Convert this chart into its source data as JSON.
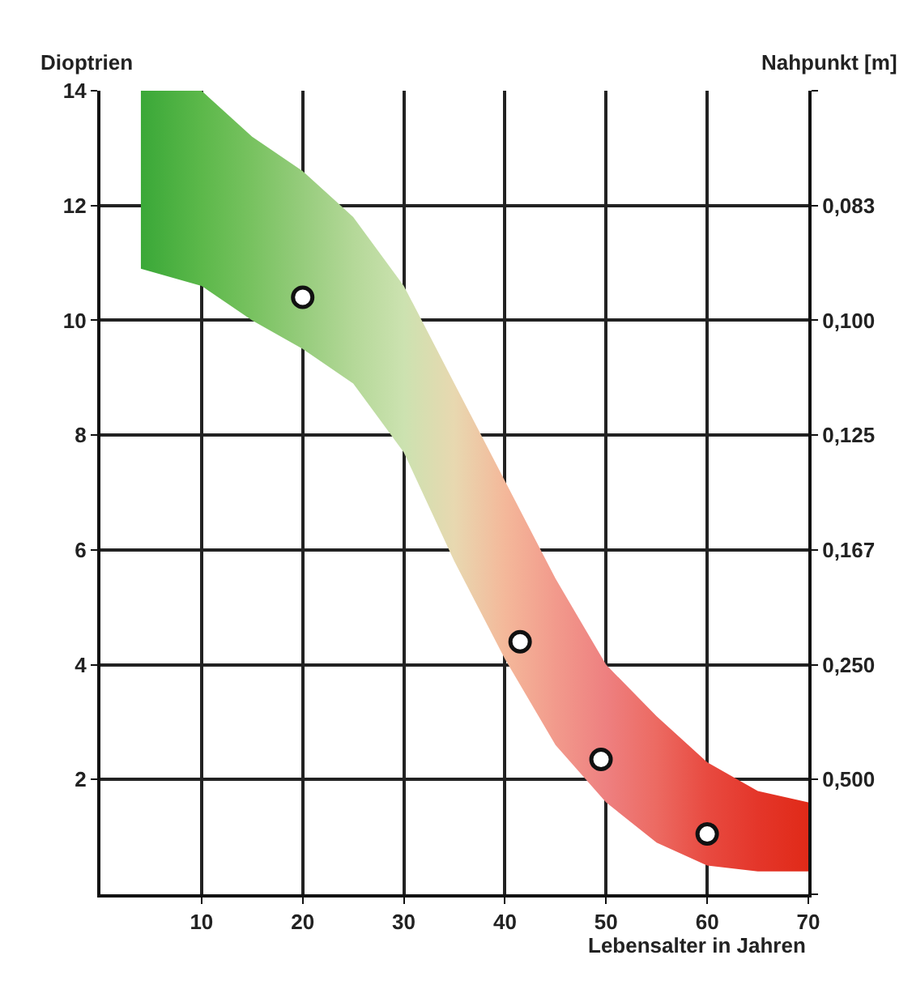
{
  "chart_data": {
    "type": "scatter",
    "xlabel": "Lebensalter in Jahren",
    "ylabel": "Dioptrien",
    "y2label": "Nahpunkt [m]",
    "xlim": [
      0,
      70
    ],
    "xticks": [
      10,
      20,
      30,
      40,
      50,
      60,
      70
    ],
    "ylim": [
      0,
      14
    ],
    "yticks": [
      2,
      4,
      6,
      8,
      10,
      12,
      14
    ],
    "y2_categories": [
      null,
      "0,083",
      "0,100",
      "0,125",
      "0,167",
      "0,250",
      "0,500",
      null
    ],
    "grid": true,
    "marker": "circle",
    "series": [
      {
        "type": "area",
        "x": [
          4,
          10,
          15,
          20,
          25,
          30,
          35,
          40,
          45,
          50,
          55,
          60,
          65,
          70
        ],
        "values": [
          null,
          null,
          null,
          null,
          null,
          null,
          null,
          null,
          null,
          null,
          null,
          null,
          null,
          null
        ],
        "upper": [
          14,
          14,
          13.2,
          12.6,
          11.8,
          10.6,
          8.9,
          7.2,
          5.5,
          4.0,
          3.1,
          2.3,
          1.8,
          1.6
        ],
        "lower": [
          10.9,
          10.6,
          10.0,
          9.5,
          8.9,
          7.7,
          5.8,
          4.1,
          2.6,
          1.6,
          0.9,
          0.5,
          0.4,
          0.4
        ],
        "colors": [
          "#3aa838",
          "#5cb84a",
          "#78c260",
          "#96cc7c",
          "#b4d898",
          "#cce2b0",
          "#e8d8b0",
          "#f4b89a",
          "#f29a8c",
          "#ee8080",
          "#ec6a62",
          "#e84a40",
          "#e4362a",
          "#e02a18"
        ]
      },
      {
        "x": [
          20,
          41.5,
          49.5,
          60
        ],
        "values": [
          10.4,
          4.4,
          2.35,
          1.05
        ],
        "color": "#ffffff"
      }
    ]
  }
}
